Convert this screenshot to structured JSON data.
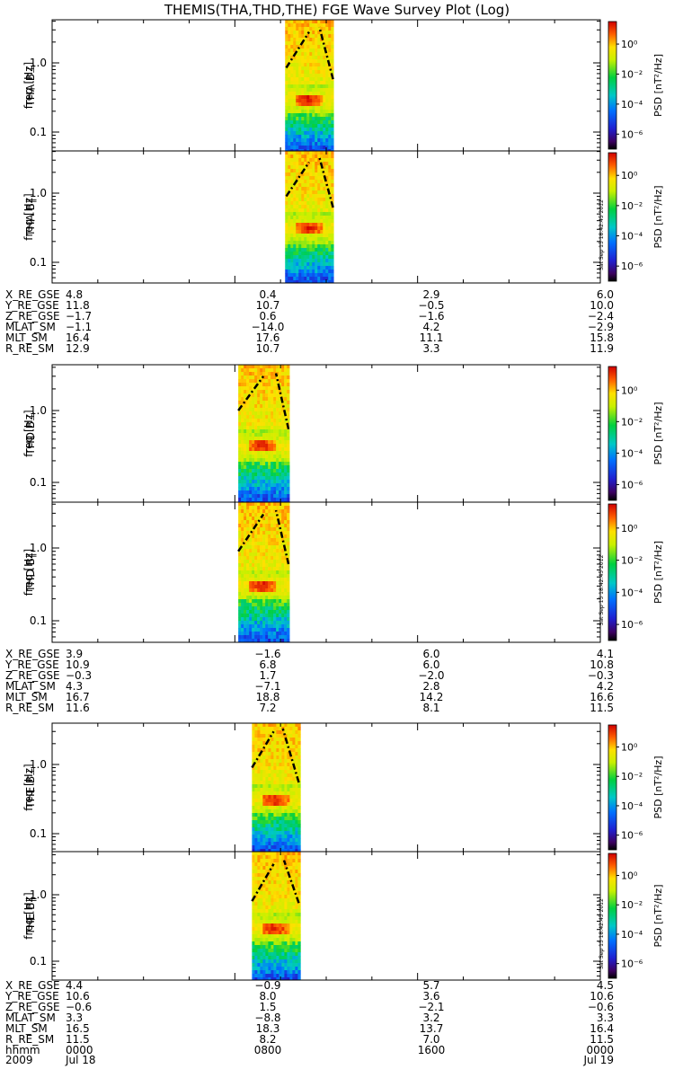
{
  "title": "THEMIS(THA,THD,THE) FGE Wave Survey Plot (Log)",
  "stamp": "Sat Sep 15 18:42:45 2012",
  "colorbar": {
    "label": "PSD [nT²/Hz]",
    "ticks": [
      "10⁰",
      "10⁻²",
      "10⁻⁴",
      "10⁻⁶"
    ],
    "range_log10": [
      -7,
      1.5
    ]
  },
  "chart_data": {
    "type": "heatmap",
    "x_axis": {
      "tick_labels": [
        "0000",
        "0800",
        "1600",
        "0000"
      ],
      "tick_hours": [
        0,
        8,
        16,
        24
      ],
      "date_labels": [
        "2009",
        "Jul 18",
        "Jul 19"
      ],
      "range_hours": [
        0,
        24
      ]
    },
    "y_axis": {
      "ylabel": "freq [Hz]",
      "tick_labels": [
        "1.0",
        "0.1"
      ],
      "tick_values": [
        1.0,
        0.1
      ],
      "range": [
        0.05,
        3.3
      ],
      "log": true
    },
    "panels": [
      {
        "name": "THA B⊥",
        "t_start": 10.2,
        "t_end": 12.3,
        "peak_freq": 0.32,
        "lines": [
          [
            10.25,
            0.85,
            11.25,
            2.8
          ],
          [
            12.3,
            0.58,
            11.7,
            3.3
          ]
        ]
      },
      {
        "name": "THA B∥",
        "t_start": 10.2,
        "t_end": 12.3,
        "peak_freq": 0.33,
        "lines": [
          [
            10.25,
            0.9,
            11.25,
            2.8
          ],
          [
            12.3,
            0.62,
            11.7,
            3.3
          ]
        ]
      },
      {
        "name": "THD B⊥",
        "t_start": 8.15,
        "t_end": 10.35,
        "peak_freq": 0.33,
        "lines": [
          [
            8.15,
            1.0,
            9.25,
            3.0
          ],
          [
            10.35,
            0.55,
            9.8,
            3.3
          ]
        ]
      },
      {
        "name": "THD B∥",
        "t_start": 8.15,
        "t_end": 10.35,
        "peak_freq": 0.33,
        "lines": [
          [
            8.15,
            0.9,
            9.25,
            2.9
          ],
          [
            10.35,
            0.6,
            9.8,
            3.3
          ]
        ]
      },
      {
        "name": "THE B⊥",
        "t_start": 8.75,
        "t_end": 10.8,
        "peak_freq": 0.33,
        "lines": [
          [
            8.75,
            0.9,
            9.7,
            3.0
          ],
          [
            10.8,
            0.55,
            10.1,
            3.3
          ]
        ]
      },
      {
        "name": "THE B∥",
        "t_start": 8.75,
        "t_end": 10.8,
        "peak_freq": 0.33,
        "lines": [
          [
            8.75,
            0.8,
            9.7,
            2.9
          ],
          [
            10.8,
            0.75,
            10.15,
            3.3
          ]
        ]
      }
    ]
  },
  "ephemeris": [
    {
      "rows": [
        {
          "label": "X_RE_GSE",
          "v": [
            "4.8",
            "0.4",
            "2.9",
            "6.0"
          ]
        },
        {
          "label": "Y_RE_GSE",
          "v": [
            "11.8",
            "10.7",
            "−0.5",
            "10.0"
          ]
        },
        {
          "label": "Z_RE_GSE",
          "v": [
            "−1.7",
            "0.6",
            "−1.6",
            "−2.4"
          ]
        },
        {
          "label": "MLAT_SM",
          "v": [
            "−1.1",
            "−14.0",
            "4.2",
            "−2.9"
          ]
        },
        {
          "label": "MLT_SM",
          "v": [
            "16.4",
            "17.6",
            "11.1",
            "15.8"
          ]
        },
        {
          "label": "R_RE_SM",
          "v": [
            "12.9",
            "10.7",
            "3.3",
            "11.9"
          ]
        }
      ]
    },
    {
      "rows": [
        {
          "label": "X_RE_GSE",
          "v": [
            "3.9",
            "−1.6",
            "6.0",
            "4.1"
          ]
        },
        {
          "label": "Y_RE_GSE",
          "v": [
            "10.9",
            "6.8",
            "6.0",
            "10.8"
          ]
        },
        {
          "label": "Z_RE_GSE",
          "v": [
            "−0.3",
            "1.7",
            "−2.0",
            "−0.3"
          ]
        },
        {
          "label": "MLAT_SM",
          "v": [
            "4.3",
            "−7.1",
            "2.8",
            "4.2"
          ]
        },
        {
          "label": "MLT_SM",
          "v": [
            "16.7",
            "18.8",
            "14.2",
            "16.6"
          ]
        },
        {
          "label": "R_RE_SM",
          "v": [
            "11.6",
            "7.2",
            "8.1",
            "11.5"
          ]
        }
      ]
    },
    {
      "rows": [
        {
          "label": "X_RE_GSE",
          "v": [
            "4.4",
            "−0.9",
            "5.7",
            "4.5"
          ]
        },
        {
          "label": "Y_RE_GSE",
          "v": [
            "10.6",
            "8.0",
            "3.6",
            "10.6"
          ]
        },
        {
          "label": "Z_RE_GSE",
          "v": [
            "−0.6",
            "1.5",
            "−2.1",
            "−0.6"
          ]
        },
        {
          "label": "MLAT_SM",
          "v": [
            "3.3",
            "−8.8",
            "3.2",
            "3.3"
          ]
        },
        {
          "label": "MLT_SM",
          "v": [
            "16.5",
            "18.3",
            "13.7",
            "16.4"
          ]
        },
        {
          "label": "R_RE_SM",
          "v": [
            "11.5",
            "8.2",
            "7.0",
            "11.5"
          ]
        }
      ]
    }
  ],
  "time_row_label": "hhmm"
}
